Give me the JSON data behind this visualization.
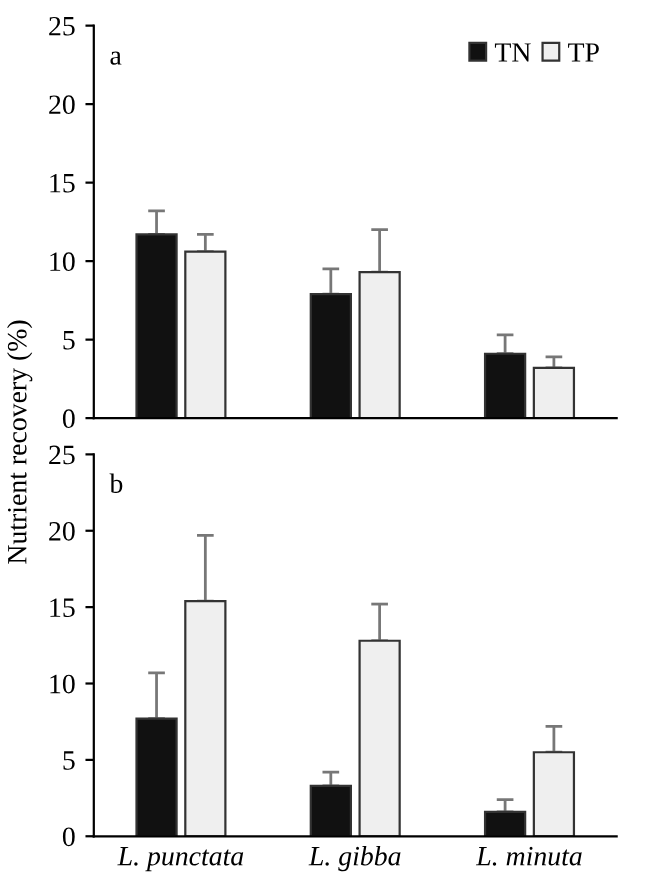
{
  "chart_data": [
    {
      "type": "bar",
      "categories": [
        null,
        null,
        null
      ],
      "ylabel": "Nutrient recovery (%)",
      "ylim": [
        0,
        25
      ],
      "yticks": [
        0,
        5,
        10,
        15,
        20,
        25
      ],
      "legend": "top right",
      "grid": false,
      "annotations": [
        "a"
      ],
      "series": [
        {
          "name": "TN",
          "color": "#111111",
          "values": [
            11.7,
            7.9,
            4.1
          ],
          "errors": [
            [
              11.7,
              13.2
            ],
            [
              7.9,
              9.5
            ],
            [
              4.1,
              5.3
            ]
          ]
        },
        {
          "name": "TP",
          "color": "#efefef",
          "values": [
            10.6,
            9.3,
            3.2
          ],
          "errors": [
            [
              10.6,
              11.7
            ],
            [
              9.3,
              12.0
            ],
            [
              3.2,
              3.9
            ]
          ]
        }
      ]
    },
    {
      "type": "bar",
      "categories": [
        "L. punctata",
        "L. gibba",
        "L. minuta"
      ],
      "ylim": [
        0,
        25
      ],
      "yticks": [
        0,
        5,
        10,
        15,
        20,
        25
      ],
      "grid": false,
      "annotations": [
        "b"
      ],
      "series": [
        {
          "color": "#111111",
          "values": [
            7.7,
            3.3,
            1.6
          ],
          "errors": [
            [
              7.7,
              10.7
            ],
            [
              3.3,
              4.2
            ],
            [
              1.6,
              2.4
            ]
          ]
        },
        {
          "color": "#efefef",
          "values": [
            15.4,
            12.8,
            5.5
          ],
          "errors": [
            [
              15.4,
              19.7
            ],
            [
              12.8,
              15.2
            ],
            [
              5.5,
              7.2
            ]
          ]
        }
      ]
    }
  ]
}
